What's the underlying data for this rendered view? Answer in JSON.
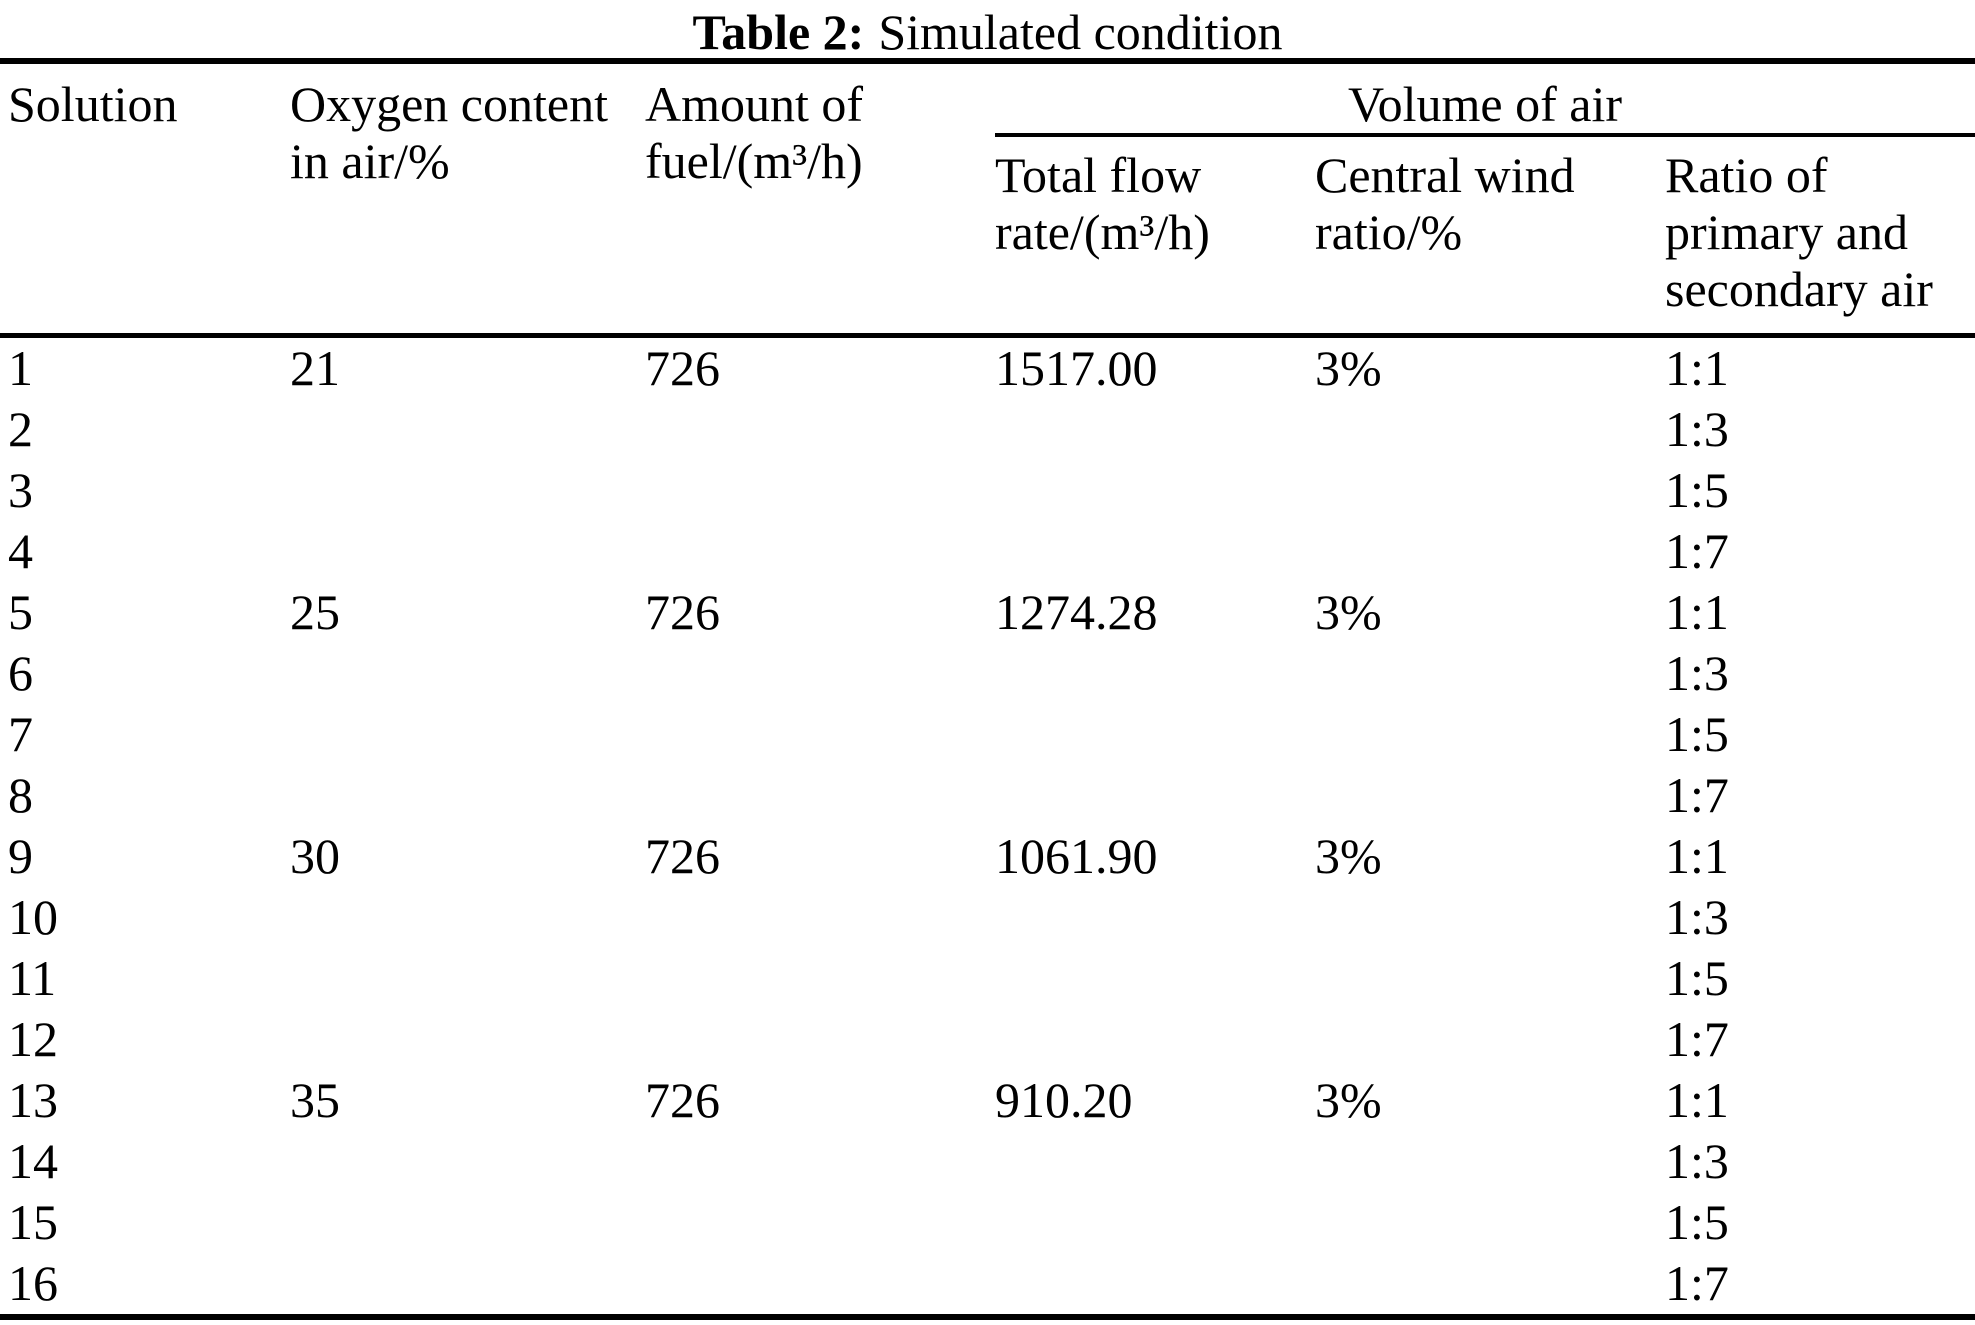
{
  "table": {
    "title_label": "Table 2:",
    "title_text": "Simulated condition",
    "columns": {
      "solution": "Solution",
      "oxygen": "Oxygen content\nin air/%",
      "fuel": "Amount of\nfuel/(m³/h)",
      "volume_group": "Volume of air",
      "total_flow": "Total flow\nrate/(m³/h)",
      "central_wind": "Central wind\nratio/%",
      "ratio": "Ratio of\nprimary and\nsecondary air"
    },
    "rows": [
      {
        "n": "1",
        "oxygen": "21",
        "fuel": "726",
        "flow": "1517.00",
        "wind": "3%",
        "ratio": "1:1"
      },
      {
        "n": "2",
        "oxygen": "",
        "fuel": "",
        "flow": "",
        "wind": "",
        "ratio": "1:3"
      },
      {
        "n": "3",
        "oxygen": "",
        "fuel": "",
        "flow": "",
        "wind": "",
        "ratio": "1:5"
      },
      {
        "n": "4",
        "oxygen": "",
        "fuel": "",
        "flow": "",
        "wind": "",
        "ratio": "1:7"
      },
      {
        "n": "5",
        "oxygen": "25",
        "fuel": "726",
        "flow": "1274.28",
        "wind": "3%",
        "ratio": "1:1"
      },
      {
        "n": "6",
        "oxygen": "",
        "fuel": "",
        "flow": "",
        "wind": "",
        "ratio": "1:3"
      },
      {
        "n": "7",
        "oxygen": "",
        "fuel": "",
        "flow": "",
        "wind": "",
        "ratio": "1:5"
      },
      {
        "n": "8",
        "oxygen": "",
        "fuel": "",
        "flow": "",
        "wind": "",
        "ratio": "1:7"
      },
      {
        "n": "9",
        "oxygen": "30",
        "fuel": "726",
        "flow": "1061.90",
        "wind": "3%",
        "ratio": "1:1"
      },
      {
        "n": "10",
        "oxygen": "",
        "fuel": "",
        "flow": "",
        "wind": "",
        "ratio": "1:3"
      },
      {
        "n": "11",
        "oxygen": "",
        "fuel": "",
        "flow": "",
        "wind": "",
        "ratio": "1:5"
      },
      {
        "n": "12",
        "oxygen": "",
        "fuel": "",
        "flow": "",
        "wind": "",
        "ratio": "1:7"
      },
      {
        "n": "13",
        "oxygen": "35",
        "fuel": "726",
        "flow": "910.20",
        "wind": "3%",
        "ratio": "1:1"
      },
      {
        "n": "14",
        "oxygen": "",
        "fuel": "",
        "flow": "",
        "wind": "",
        "ratio": "1:3"
      },
      {
        "n": "15",
        "oxygen": "",
        "fuel": "",
        "flow": "",
        "wind": "",
        "ratio": "1:5"
      },
      {
        "n": "16",
        "oxygen": "",
        "fuel": "",
        "flow": "",
        "wind": "",
        "ratio": "1:7"
      }
    ]
  }
}
